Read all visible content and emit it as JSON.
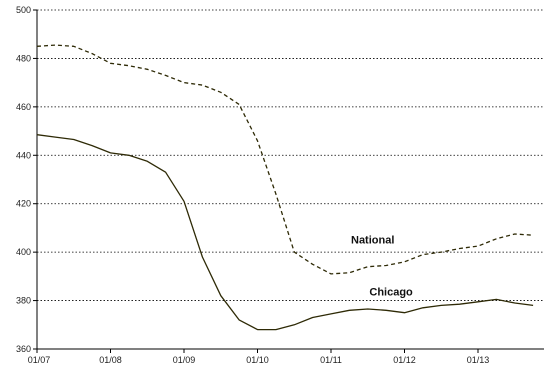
{
  "chart_data": {
    "type": "line",
    "title": "",
    "xlabel": "",
    "ylabel": "",
    "ylim": [
      360,
      500
    ],
    "yticks": [
      360,
      380,
      400,
      420,
      440,
      460,
      480,
      500
    ],
    "xtick_labels": [
      "01/07",
      "01/08",
      "01/09",
      "01/10",
      "01/11",
      "01/12",
      "01/13"
    ],
    "grid": "horizontal dotted",
    "colors": {
      "line": "#2e2a06",
      "axis": "#000000",
      "grid": "#000000"
    },
    "x": [
      0.0,
      0.25,
      0.5,
      0.75,
      1.0,
      1.25,
      1.5,
      1.75,
      2.0,
      2.25,
      2.5,
      2.75,
      3.0,
      3.25,
      3.5,
      3.75,
      4.0,
      4.25,
      4.5,
      4.75,
      5.0,
      5.25,
      5.5,
      5.75,
      6.0,
      6.25,
      6.5,
      6.75
    ],
    "series": [
      {
        "name": "National",
        "style": "dashed",
        "values": [
          485,
          485.5,
          485,
          482,
          478,
          477,
          475.5,
          473,
          470,
          469,
          466,
          461,
          446,
          424,
          400,
          395,
          391,
          391.5,
          394,
          394.5,
          396,
          399,
          400,
          401.5,
          402.5,
          405.5,
          407.5,
          407
        ]
      },
      {
        "name": "Chicago",
        "style": "solid",
        "values": [
          448.5,
          447.5,
          446.5,
          444,
          441,
          440,
          437.5,
          433,
          421,
          398,
          382,
          372,
          368,
          368,
          370,
          373,
          374.5,
          376,
          376.5,
          376,
          375,
          377,
          378,
          378.5,
          379.5,
          380.5,
          379,
          378
        ]
      }
    ]
  }
}
